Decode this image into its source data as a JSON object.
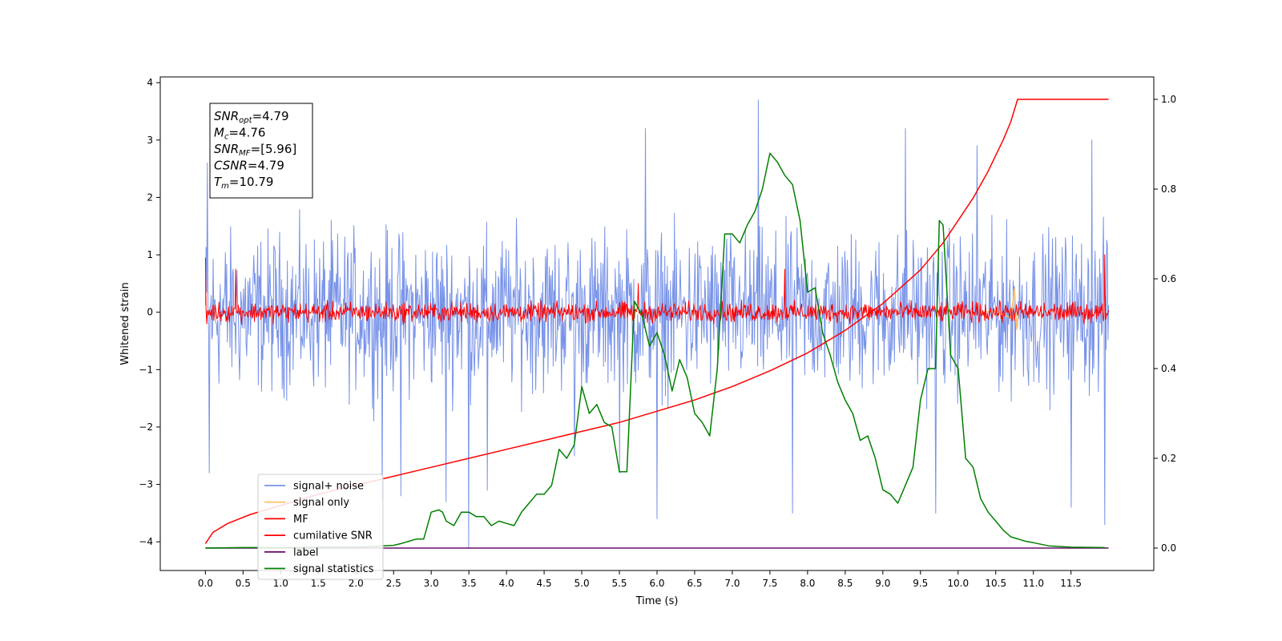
{
  "chart_data": {
    "type": "line",
    "xlabel": "Time (s)",
    "ylabel": "Whitened strain",
    "xlim": [
      -0.6,
      12.6
    ],
    "ylim": [
      -4.5,
      4.1
    ],
    "y2lim": [
      -0.05,
      1.05
    ],
    "xticks": [
      "0.0",
      "0.5",
      "1.0",
      "1.5",
      "2.0",
      "2.5",
      "3.0",
      "3.5",
      "4.0",
      "4.5",
      "5.0",
      "5.5",
      "6.0",
      "6.5",
      "7.0",
      "7.5",
      "8.0",
      "8.5",
      "9.0",
      "9.5",
      "10.0",
      "10.5",
      "11.0",
      "11.5"
    ],
    "yticks": [
      "4",
      "3",
      "2",
      "1",
      "0",
      "−1",
      "−2",
      "−3",
      "−4"
    ],
    "y2ticks": [
      "1.0",
      "0.8",
      "0.6",
      "0.4",
      "0.2",
      "0.0"
    ],
    "grid": false,
    "legend_position": "lower-left",
    "annotation": [
      {
        "base": "SNR",
        "sub": "opt",
        "value": "=4.79"
      },
      {
        "base": "M",
        "sub": "c",
        "value": "=4.76"
      },
      {
        "base": "SNR",
        "sub": "MF",
        "value": "=[5.96]"
      },
      {
        "base": "CSNR",
        "sub": "",
        "value": "=4.79"
      },
      {
        "base": "T",
        "sub": "m",
        "value": "=10.79"
      }
    ],
    "series": [
      {
        "name": "signal+ noise",
        "color": "#7893e8",
        "axis": "left",
        "style": "noise",
        "x_range": [
          0.0,
          12.0
        ],
        "envelope_max": 2.0,
        "envelope_min": -2.0,
        "spikes": [
          [
            0.03,
            2.6
          ],
          [
            0.05,
            -2.8
          ],
          [
            2.35,
            -3.3
          ],
          [
            2.6,
            -3.2
          ],
          [
            3.2,
            -3.3
          ],
          [
            3.5,
            -4.1
          ],
          [
            3.75,
            -3.1
          ],
          [
            4.9,
            -2.5
          ],
          [
            5.5,
            -2.8
          ],
          [
            5.85,
            3.2
          ],
          [
            6.0,
            -3.6
          ],
          [
            7.35,
            3.7
          ],
          [
            7.8,
            -3.5
          ],
          [
            9.3,
            3.2
          ],
          [
            9.7,
            -3.5
          ],
          [
            10.25,
            2.9
          ],
          [
            11.5,
            -3.4
          ],
          [
            11.78,
            3.0
          ],
          [
            11.95,
            -3.7
          ]
        ]
      },
      {
        "name": "signal only",
        "color": "#ffc46a",
        "axis": "left",
        "style": "flat",
        "x": [
          10.3,
          10.5,
          10.7,
          10.75,
          10.78,
          10.8
        ],
        "y": [
          0.0,
          0.02,
          -0.1,
          0.4,
          -0.3,
          0.0
        ]
      },
      {
        "name": "MF",
        "color": "#ff0000",
        "axis": "left",
        "style": "noise",
        "x_range": [
          0.0,
          12.0
        ],
        "envelope_max": 0.25,
        "envelope_min": -0.25,
        "spikes": [
          [
            0.0,
            0.95
          ],
          [
            0.02,
            -0.2
          ],
          [
            0.4,
            0.75
          ],
          [
            5.75,
            0.5
          ],
          [
            7.7,
            0.75
          ],
          [
            11.95,
            1.0
          ]
        ]
      },
      {
        "name": "cumilative SNR",
        "color": "#ff0000",
        "axis": "right",
        "x": [
          0.0,
          0.1,
          0.3,
          0.6,
          1.0,
          1.5,
          2.0,
          2.5,
          3.0,
          3.5,
          4.0,
          4.5,
          5.0,
          5.5,
          6.0,
          6.5,
          7.0,
          7.5,
          8.0,
          8.5,
          9.0,
          9.5,
          9.8,
          10.0,
          10.2,
          10.4,
          10.6,
          10.7,
          10.79,
          12.0
        ],
        "y": [
          0.01,
          0.035,
          0.055,
          0.075,
          0.095,
          0.12,
          0.14,
          0.16,
          0.18,
          0.2,
          0.22,
          0.24,
          0.26,
          0.28,
          0.305,
          0.33,
          0.36,
          0.395,
          0.435,
          0.485,
          0.545,
          0.62,
          0.68,
          0.73,
          0.78,
          0.84,
          0.91,
          0.95,
          1.0,
          1.0
        ]
      },
      {
        "name": "label",
        "color": "#6a0e6b",
        "axis": "right",
        "x": [
          0.0,
          12.0
        ],
        "y": [
          0.0,
          0.0
        ]
      },
      {
        "name": "signal statistics",
        "color": "#008000",
        "axis": "right",
        "x": [
          0.0,
          0.5,
          1.0,
          1.5,
          2.0,
          2.5,
          2.6,
          2.7,
          2.8,
          2.9,
          3.0,
          3.1,
          3.15,
          3.2,
          3.3,
          3.4,
          3.5,
          3.6,
          3.7,
          3.8,
          3.9,
          4.0,
          4.1,
          4.2,
          4.3,
          4.4,
          4.5,
          4.6,
          4.7,
          4.8,
          4.9,
          5.0,
          5.1,
          5.2,
          5.3,
          5.4,
          5.5,
          5.6,
          5.7,
          5.8,
          5.9,
          6.0,
          6.1,
          6.2,
          6.3,
          6.4,
          6.5,
          6.6,
          6.7,
          6.8,
          6.9,
          7.0,
          7.1,
          7.2,
          7.3,
          7.4,
          7.5,
          7.6,
          7.7,
          7.8,
          7.9,
          8.0,
          8.1,
          8.2,
          8.3,
          8.4,
          8.5,
          8.6,
          8.7,
          8.8,
          8.9,
          9.0,
          9.1,
          9.2,
          9.3,
          9.4,
          9.5,
          9.6,
          9.7,
          9.75,
          9.8,
          9.9,
          10.0,
          10.1,
          10.2,
          10.3,
          10.4,
          10.5,
          10.6,
          10.7,
          10.8,
          10.9,
          11.0,
          11.2,
          11.5,
          11.95
        ],
        "y": [
          0.0,
          0.001,
          0.001,
          0.002,
          0.002,
          0.006,
          0.01,
          0.015,
          0.02,
          0.02,
          0.08,
          0.085,
          0.08,
          0.06,
          0.05,
          0.08,
          0.08,
          0.07,
          0.07,
          0.05,
          0.06,
          0.055,
          0.05,
          0.08,
          0.1,
          0.12,
          0.12,
          0.14,
          0.22,
          0.2,
          0.23,
          0.36,
          0.3,
          0.32,
          0.28,
          0.27,
          0.17,
          0.17,
          0.55,
          0.52,
          0.45,
          0.48,
          0.43,
          0.35,
          0.42,
          0.38,
          0.3,
          0.28,
          0.25,
          0.4,
          0.7,
          0.7,
          0.68,
          0.72,
          0.75,
          0.8,
          0.88,
          0.86,
          0.83,
          0.81,
          0.73,
          0.57,
          0.58,
          0.48,
          0.43,
          0.37,
          0.33,
          0.3,
          0.24,
          0.25,
          0.2,
          0.13,
          0.12,
          0.1,
          0.14,
          0.18,
          0.33,
          0.4,
          0.4,
          0.73,
          0.72,
          0.43,
          0.4,
          0.2,
          0.18,
          0.11,
          0.08,
          0.06,
          0.04,
          0.025,
          0.02,
          0.015,
          0.012,
          0.005,
          0.002,
          0.001
        ]
      }
    ]
  }
}
